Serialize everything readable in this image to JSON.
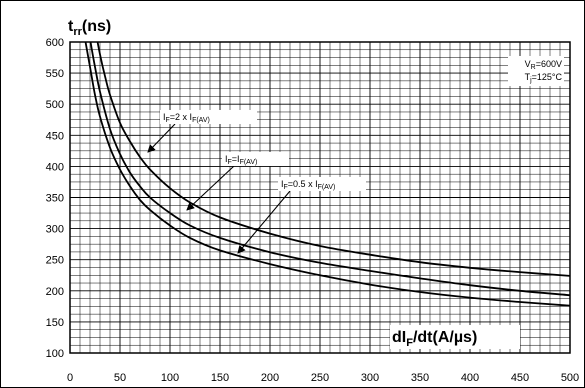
{
  "chart_data": {
    "type": "line",
    "title": "",
    "ylabel": {
      "main": "t",
      "sub": "rr",
      "unit": "(ns)"
    },
    "xlabel": {
      "pre": "dI",
      "sub": "F",
      "post": "/dt(A/µs)"
    },
    "xlim": [
      0,
      500
    ],
    "ylim": [
      100,
      600
    ],
    "x_ticks": [
      "0",
      "50",
      "100",
      "150",
      "200",
      "250",
      "300",
      "350",
      "400",
      "450",
      "500"
    ],
    "y_ticks": [
      "100",
      "150",
      "200",
      "250",
      "300",
      "350",
      "400",
      "450",
      "500",
      "550",
      "600"
    ],
    "grid": true,
    "conditions": [
      {
        "pre": "V",
        "sub": "R",
        "post": "=600V"
      },
      {
        "pre": "T",
        "sub": "j",
        "post": "=125°C"
      }
    ],
    "series": [
      {
        "label": [
          {
            "t": "I"
          },
          {
            "t": "F",
            "sub": true
          },
          {
            "t": "=2 x I"
          },
          {
            "t": "F(AV)",
            "sub": true
          }
        ],
        "x": [
          27,
          30,
          35,
          40,
          50,
          60,
          70,
          80,
          100,
          120,
          150,
          200,
          250,
          300,
          350,
          400,
          450,
          500
        ],
        "y": [
          605,
          580,
          545,
          515,
          470,
          440,
          415,
          395,
          365,
          342,
          318,
          292,
          272,
          258,
          246,
          237,
          230,
          224
        ]
      },
      {
        "label": [
          {
            "t": "I"
          },
          {
            "t": "F",
            "sub": true
          },
          {
            "t": "=I"
          },
          {
            "t": "F(AV)",
            "sub": true
          }
        ],
        "x": [
          20,
          25,
          30,
          40,
          50,
          60,
          70,
          80,
          100,
          120,
          150,
          200,
          250,
          300,
          350,
          400,
          450,
          500
        ],
        "y": [
          605,
          560,
          520,
          460,
          420,
          390,
          368,
          350,
          325,
          305,
          285,
          262,
          245,
          232,
          220,
          209,
          200,
          193
        ]
      },
      {
        "label": [
          {
            "t": "I"
          },
          {
            "t": "F",
            "sub": true
          },
          {
            "t": "=0.5 x I"
          },
          {
            "t": "F(AV)",
            "sub": true
          }
        ],
        "x": [
          15,
          20,
          25,
          30,
          40,
          50,
          60,
          70,
          80,
          100,
          120,
          150,
          200,
          250,
          300,
          350,
          400,
          450,
          500
        ],
        "y": [
          605,
          560,
          515,
          480,
          430,
          395,
          368,
          346,
          330,
          305,
          285,
          265,
          243,
          225,
          210,
          198,
          189,
          182,
          176
        ]
      }
    ]
  }
}
